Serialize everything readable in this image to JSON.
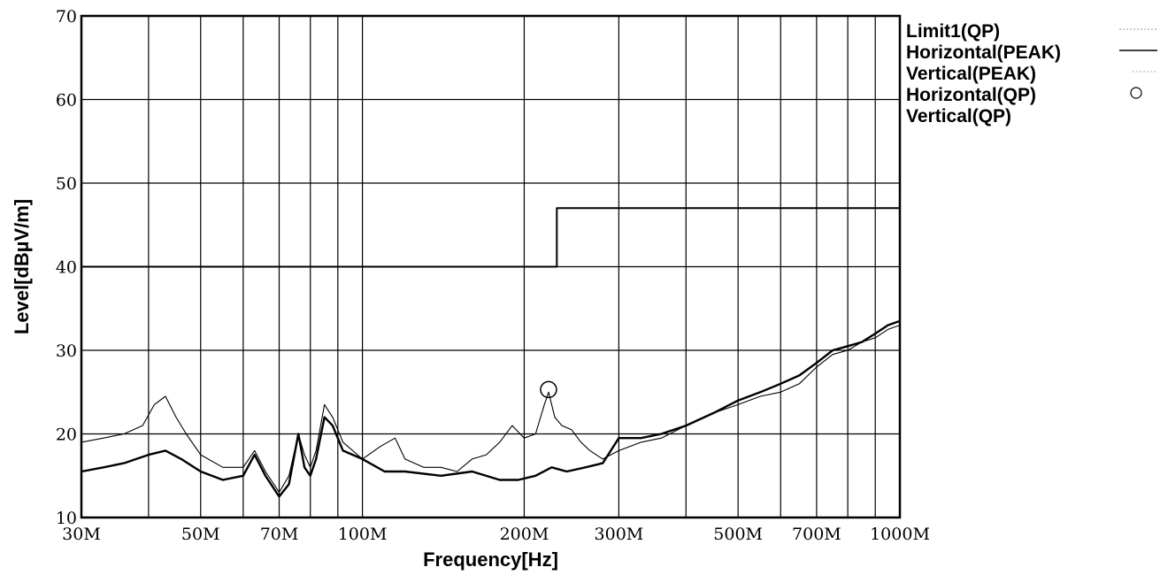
{
  "chart_data": {
    "type": "line",
    "xlabel": "Frequency[Hz]",
    "ylabel": "Level[dBµV/m]",
    "xscale": "log",
    "xlim": [
      30,
      1000
    ],
    "ylim": [
      10,
      70
    ],
    "grid": true,
    "legend_position": "right",
    "colors": {
      "trace": "#000000",
      "grid": "#000000",
      "background": "#ffffff"
    },
    "x_ticks": [
      {
        "value": 30,
        "label": "30M"
      },
      {
        "value": 50,
        "label": "50M"
      },
      {
        "value": 70,
        "label": "70M"
      },
      {
        "value": 100,
        "label": "100M"
      },
      {
        "value": 200,
        "label": "200M"
      },
      {
        "value": 300,
        "label": "300M"
      },
      {
        "value": 500,
        "label": "500M"
      },
      {
        "value": 700,
        "label": "700M"
      },
      {
        "value": 1000,
        "label": "1000M"
      }
    ],
    "x_grid": [
      30,
      40,
      50,
      60,
      70,
      80,
      90,
      100,
      200,
      300,
      400,
      500,
      600,
      700,
      800,
      900,
      1000
    ],
    "y_ticks": [
      {
        "value": 10,
        "label": "10"
      },
      {
        "value": 20,
        "label": "20"
      },
      {
        "value": 30,
        "label": "30"
      },
      {
        "value": 40,
        "label": "40"
      },
      {
        "value": 50,
        "label": "50"
      },
      {
        "value": 60,
        "label": "60"
      },
      {
        "value": 70,
        "label": "70"
      }
    ],
    "series": [
      {
        "name": "Limit1(QP)",
        "style": "limit",
        "points": [
          [
            30,
            40
          ],
          [
            230,
            40
          ],
          [
            230,
            47
          ],
          [
            1000,
            47
          ]
        ]
      },
      {
        "name": "Horizontal(PEAK)",
        "style": "thick",
        "points": [
          [
            30,
            15.5
          ],
          [
            33,
            16
          ],
          [
            36,
            16.5
          ],
          [
            40,
            17.5
          ],
          [
            43,
            18
          ],
          [
            46,
            17
          ],
          [
            50,
            15.5
          ],
          [
            55,
            14.5
          ],
          [
            60,
            15
          ],
          [
            63,
            17.5
          ],
          [
            66,
            15
          ],
          [
            70,
            12.5
          ],
          [
            73,
            14
          ],
          [
            76,
            20
          ],
          [
            78,
            16
          ],
          [
            80,
            15
          ],
          [
            82,
            17
          ],
          [
            85,
            22
          ],
          [
            88,
            21
          ],
          [
            92,
            18
          ],
          [
            100,
            17
          ],
          [
            110,
            15.5
          ],
          [
            120,
            15.5
          ],
          [
            140,
            15
          ],
          [
            160,
            15.5
          ],
          [
            180,
            14.5
          ],
          [
            195,
            14.5
          ],
          [
            210,
            15
          ],
          [
            225,
            16
          ],
          [
            240,
            15.5
          ],
          [
            260,
            16
          ],
          [
            280,
            16.5
          ],
          [
            300,
            19.5
          ],
          [
            330,
            19.5
          ],
          [
            360,
            20
          ],
          [
            400,
            21
          ],
          [
            450,
            22.5
          ],
          [
            500,
            24
          ],
          [
            550,
            25
          ],
          [
            600,
            26
          ],
          [
            650,
            27
          ],
          [
            700,
            28.5
          ],
          [
            750,
            30
          ],
          [
            800,
            30.5
          ],
          [
            850,
            31
          ],
          [
            900,
            32
          ],
          [
            950,
            33
          ],
          [
            1000,
            33.5
          ]
        ]
      },
      {
        "name": "Vertical(PEAK)",
        "style": "thin",
        "points": [
          [
            30,
            19
          ],
          [
            33,
            19.5
          ],
          [
            36,
            20
          ],
          [
            39,
            21
          ],
          [
            41,
            23.5
          ],
          [
            43,
            24.5
          ],
          [
            45,
            22
          ],
          [
            47,
            20
          ],
          [
            50,
            17.5
          ],
          [
            55,
            16
          ],
          [
            60,
            16
          ],
          [
            63,
            18
          ],
          [
            66,
            15.5
          ],
          [
            70,
            13
          ],
          [
            73,
            15
          ],
          [
            76,
            20
          ],
          [
            78,
            17.5
          ],
          [
            80,
            16
          ],
          [
            82,
            18
          ],
          [
            85,
            23.5
          ],
          [
            88,
            22
          ],
          [
            92,
            19
          ],
          [
            100,
            17
          ],
          [
            108,
            18.5
          ],
          [
            115,
            19.5
          ],
          [
            120,
            17
          ],
          [
            130,
            16
          ],
          [
            140,
            16
          ],
          [
            150,
            15.5
          ],
          [
            160,
            17
          ],
          [
            170,
            17.5
          ],
          [
            180,
            19
          ],
          [
            190,
            21
          ],
          [
            200,
            19.5
          ],
          [
            210,
            20
          ],
          [
            218,
            23.5
          ],
          [
            222,
            25
          ],
          [
            228,
            22
          ],
          [
            235,
            21
          ],
          [
            245,
            20.5
          ],
          [
            255,
            19
          ],
          [
            265,
            18
          ],
          [
            280,
            17
          ],
          [
            300,
            18
          ],
          [
            330,
            19
          ],
          [
            360,
            19.5
          ],
          [
            400,
            21
          ],
          [
            450,
            22.5
          ],
          [
            500,
            23.5
          ],
          [
            550,
            24.5
          ],
          [
            600,
            25
          ],
          [
            650,
            26
          ],
          [
            700,
            28
          ],
          [
            750,
            29.5
          ],
          [
            800,
            30
          ],
          [
            850,
            31
          ],
          [
            900,
            31.5
          ],
          [
            950,
            32.5
          ],
          [
            1000,
            33
          ]
        ]
      },
      {
        "name": "Horizontal(QP)",
        "style": "circle",
        "points": [
          [
            222,
            25.3
          ]
        ]
      },
      {
        "name": "Vertical(QP)",
        "style": "none",
        "points": []
      }
    ]
  }
}
